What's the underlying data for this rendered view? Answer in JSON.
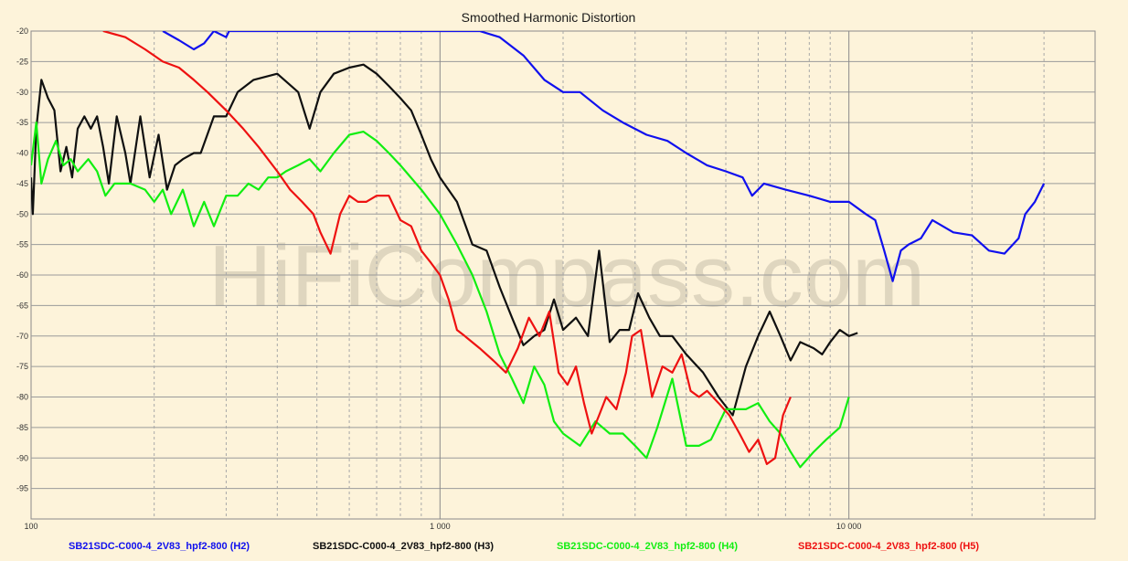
{
  "chart_data": {
    "type": "line",
    "title": "Smoothed Harmonic Distortion",
    "watermark": "HiFiCompass.com",
    "xscale": "log",
    "xlim": [
      100,
      40000
    ],
    "ylim": [
      -100,
      -20
    ],
    "x_ticks": [
      100,
      1000,
      10000
    ],
    "x_tick_labels": [
      "100",
      "1 000",
      "10 000"
    ],
    "y_ticks": [
      -20,
      -25,
      -30,
      -35,
      -40,
      -45,
      -50,
      -55,
      -60,
      -65,
      -70,
      -75,
      -80,
      -85,
      -90,
      -95
    ],
    "y_tick_labels": [
      "-20",
      "-25",
      "-30",
      "-35",
      "-40",
      "-45",
      "-50",
      "-55",
      "-60",
      "-65",
      "-70",
      "-75",
      "-80",
      "-85",
      "-90",
      "-95"
    ],
    "grid": true,
    "legend_position": "bottom",
    "series": [
      {
        "name": "SB21SDC-C000-4_2V83_hpf2-800 (H2)",
        "color": "#1010ee",
        "points": [
          [
            210,
            -20
          ],
          [
            230,
            -21.5
          ],
          [
            250,
            -23
          ],
          [
            265,
            -22
          ],
          [
            280,
            -20
          ],
          [
            300,
            -21
          ],
          [
            305,
            -20
          ],
          [
            1250,
            -20
          ],
          [
            1400,
            -21
          ],
          [
            1600,
            -24
          ],
          [
            1800,
            -28
          ],
          [
            2000,
            -30
          ],
          [
            2200,
            -30
          ],
          [
            2500,
            -33
          ],
          [
            2800,
            -35
          ],
          [
            3200,
            -37
          ],
          [
            3600,
            -38
          ],
          [
            4000,
            -40
          ],
          [
            4500,
            -42
          ],
          [
            5000,
            -43
          ],
          [
            5500,
            -44
          ],
          [
            5800,
            -47
          ],
          [
            6200,
            -45
          ],
          [
            7000,
            -46
          ],
          [
            8000,
            -47
          ],
          [
            9000,
            -48
          ],
          [
            10000,
            -48
          ],
          [
            11000,
            -50
          ],
          [
            11600,
            -51
          ],
          [
            12200,
            -56
          ],
          [
            12800,
            -61
          ],
          [
            13400,
            -56
          ],
          [
            14000,
            -55
          ],
          [
            15000,
            -54
          ],
          [
            16000,
            -51
          ],
          [
            18000,
            -53
          ],
          [
            20000,
            -53.5
          ],
          [
            22000,
            -56
          ],
          [
            24000,
            -56.5
          ],
          [
            26000,
            -54
          ],
          [
            27000,
            -50
          ],
          [
            28500,
            -48
          ],
          [
            30000,
            -45
          ]
        ]
      },
      {
        "name": "SB21SDC-C000-4_2V83_hpf2-800 (H3)",
        "color": "#101010",
        "points": [
          [
            100,
            -44
          ],
          [
            101,
            -50
          ],
          [
            103,
            -36
          ],
          [
            106,
            -28
          ],
          [
            110,
            -31
          ],
          [
            114,
            -33
          ],
          [
            118,
            -43
          ],
          [
            122,
            -39
          ],
          [
            126,
            -44
          ],
          [
            130,
            -36
          ],
          [
            135,
            -34
          ],
          [
            140,
            -36
          ],
          [
            145,
            -34
          ],
          [
            150,
            -39
          ],
          [
            155,
            -45
          ],
          [
            162,
            -34
          ],
          [
            170,
            -40
          ],
          [
            175,
            -45
          ],
          [
            185,
            -34
          ],
          [
            195,
            -44
          ],
          [
            205,
            -37
          ],
          [
            215,
            -46
          ],
          [
            225,
            -42
          ],
          [
            235,
            -41
          ],
          [
            250,
            -40
          ],
          [
            260,
            -40
          ],
          [
            280,
            -34
          ],
          [
            300,
            -34
          ],
          [
            320,
            -30
          ],
          [
            350,
            -28
          ],
          [
            400,
            -27
          ],
          [
            450,
            -30
          ],
          [
            480,
            -36
          ],
          [
            510,
            -30
          ],
          [
            550,
            -27
          ],
          [
            600,
            -26
          ],
          [
            650,
            -25.5
          ],
          [
            700,
            -27
          ],
          [
            750,
            -29
          ],
          [
            800,
            -31
          ],
          [
            850,
            -33
          ],
          [
            900,
            -37
          ],
          [
            950,
            -41
          ],
          [
            1000,
            -44
          ],
          [
            1100,
            -48
          ],
          [
            1200,
            -55
          ],
          [
            1300,
            -56
          ],
          [
            1400,
            -62
          ],
          [
            1500,
            -67
          ],
          [
            1600,
            -71.5
          ],
          [
            1700,
            -70
          ],
          [
            1800,
            -69
          ],
          [
            1900,
            -64
          ],
          [
            2000,
            -69
          ],
          [
            2150,
            -67
          ],
          [
            2300,
            -70
          ],
          [
            2450,
            -56
          ],
          [
            2600,
            -71
          ],
          [
            2750,
            -69
          ],
          [
            2900,
            -69
          ],
          [
            3050,
            -63
          ],
          [
            3250,
            -67
          ],
          [
            3450,
            -70
          ],
          [
            3700,
            -70
          ],
          [
            4000,
            -73
          ],
          [
            4400,
            -76
          ],
          [
            4800,
            -80
          ],
          [
            5200,
            -83
          ],
          [
            5600,
            -75
          ],
          [
            6000,
            -70
          ],
          [
            6400,
            -66
          ],
          [
            6800,
            -70
          ],
          [
            7200,
            -74
          ],
          [
            7600,
            -71
          ],
          [
            8200,
            -72
          ],
          [
            8600,
            -73
          ],
          [
            9000,
            -71
          ],
          [
            9500,
            -69
          ],
          [
            10000,
            -70
          ],
          [
            10500,
            -69.5
          ]
        ]
      },
      {
        "name": "SB21SDC-C000-4_2V83_hpf2-800 (H4)",
        "color": "#11ee11",
        "points": [
          [
            100,
            -42
          ],
          [
            103,
            -35
          ],
          [
            106,
            -45
          ],
          [
            110,
            -41
          ],
          [
            115,
            -38
          ],
          [
            120,
            -42
          ],
          [
            125,
            -41
          ],
          [
            130,
            -43
          ],
          [
            138,
            -41
          ],
          [
            145,
            -43
          ],
          [
            152,
            -47
          ],
          [
            160,
            -45
          ],
          [
            175,
            -45
          ],
          [
            190,
            -46
          ],
          [
            200,
            -48
          ],
          [
            210,
            -46
          ],
          [
            220,
            -50
          ],
          [
            235,
            -46
          ],
          [
            250,
            -52
          ],
          [
            265,
            -48
          ],
          [
            280,
            -52
          ],
          [
            300,
            -47
          ],
          [
            320,
            -47
          ],
          [
            340,
            -45
          ],
          [
            360,
            -46
          ],
          [
            380,
            -44
          ],
          [
            400,
            -44
          ],
          [
            420,
            -43
          ],
          [
            450,
            -42
          ],
          [
            480,
            -41
          ],
          [
            510,
            -43
          ],
          [
            550,
            -40
          ],
          [
            600,
            -37
          ],
          [
            650,
            -36.5
          ],
          [
            700,
            -38
          ],
          [
            750,
            -40
          ],
          [
            800,
            -42
          ],
          [
            900,
            -46
          ],
          [
            1000,
            -50
          ],
          [
            1100,
            -55
          ],
          [
            1200,
            -60
          ],
          [
            1300,
            -66
          ],
          [
            1400,
            -73
          ],
          [
            1500,
            -77
          ],
          [
            1600,
            -81
          ],
          [
            1700,
            -75
          ],
          [
            1800,
            -78
          ],
          [
            1900,
            -84
          ],
          [
            2000,
            -86
          ],
          [
            2200,
            -88
          ],
          [
            2400,
            -84
          ],
          [
            2600,
            -86
          ],
          [
            2800,
            -86
          ],
          [
            3000,
            -88
          ],
          [
            3200,
            -90
          ],
          [
            3400,
            -85
          ],
          [
            3700,
            -77
          ],
          [
            4000,
            -88
          ],
          [
            4300,
            -88
          ],
          [
            4600,
            -87
          ],
          [
            5000,
            -82
          ],
          [
            5600,
            -82
          ],
          [
            6000,
            -81
          ],
          [
            6400,
            -84
          ],
          [
            6800,
            -86
          ],
          [
            7200,
            -89
          ],
          [
            7600,
            -91.5
          ],
          [
            8200,
            -89
          ],
          [
            8800,
            -87
          ],
          [
            9500,
            -85
          ],
          [
            10000,
            -80
          ]
        ]
      },
      {
        "name": "SB21SDC-C000-4_2V83_hpf2-800 (H5)",
        "color": "#ee1111",
        "points": [
          [
            150,
            -20
          ],
          [
            170,
            -21
          ],
          [
            190,
            -23
          ],
          [
            210,
            -25
          ],
          [
            230,
            -26
          ],
          [
            250,
            -28
          ],
          [
            270,
            -30
          ],
          [
            300,
            -33
          ],
          [
            330,
            -36
          ],
          [
            360,
            -39
          ],
          [
            400,
            -43
          ],
          [
            430,
            -46
          ],
          [
            460,
            -48
          ],
          [
            490,
            -50
          ],
          [
            510,
            -53
          ],
          [
            540,
            -56.5
          ],
          [
            570,
            -50
          ],
          [
            600,
            -47
          ],
          [
            630,
            -48
          ],
          [
            660,
            -48
          ],
          [
            700,
            -47
          ],
          [
            750,
            -47
          ],
          [
            800,
            -51
          ],
          [
            850,
            -52
          ],
          [
            900,
            -56
          ],
          [
            950,
            -58
          ],
          [
            1000,
            -60
          ],
          [
            1050,
            -64
          ],
          [
            1100,
            -69
          ],
          [
            1150,
            -70
          ],
          [
            1250,
            -72
          ],
          [
            1350,
            -74
          ],
          [
            1450,
            -76
          ],
          [
            1550,
            -72
          ],
          [
            1650,
            -67
          ],
          [
            1750,
            -70
          ],
          [
            1850,
            -66
          ],
          [
            1950,
            -76
          ],
          [
            2050,
            -78
          ],
          [
            2150,
            -75
          ],
          [
            2250,
            -81
          ],
          [
            2350,
            -86
          ],
          [
            2450,
            -83
          ],
          [
            2550,
            -80
          ],
          [
            2700,
            -82
          ],
          [
            2850,
            -76
          ],
          [
            2950,
            -70
          ],
          [
            3100,
            -69
          ],
          [
            3300,
            -80
          ],
          [
            3500,
            -75
          ],
          [
            3700,
            -76
          ],
          [
            3900,
            -73
          ],
          [
            4100,
            -79
          ],
          [
            4300,
            -80
          ],
          [
            4500,
            -79
          ],
          [
            4800,
            -81
          ],
          [
            5100,
            -83
          ],
          [
            5400,
            -86
          ],
          [
            5700,
            -89
          ],
          [
            6000,
            -87
          ],
          [
            6300,
            -91
          ],
          [
            6600,
            -90
          ],
          [
            6900,
            -83
          ],
          [
            7200,
            -80
          ]
        ]
      }
    ]
  }
}
